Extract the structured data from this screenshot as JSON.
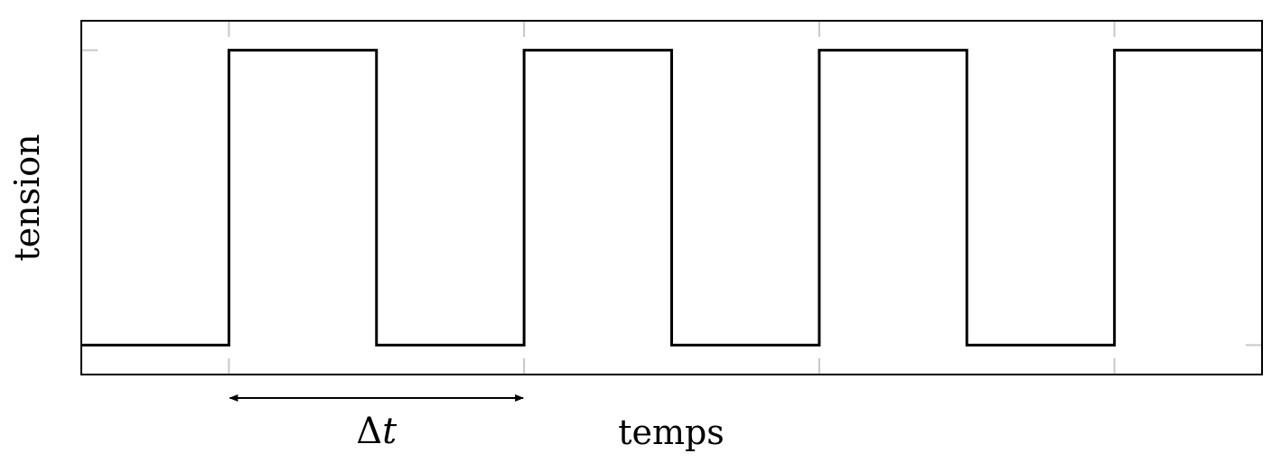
{
  "chart_data": {
    "type": "line",
    "title": "",
    "xlabel": "temps",
    "ylabel": "tension",
    "grid": false,
    "xlim": [
      0,
      8
    ],
    "ylim": [
      -0.1,
      1.1
    ],
    "x_ticks": [
      1,
      3,
      5,
      7
    ],
    "y_ticks": [
      0,
      1
    ],
    "series": [
      {
        "name": "",
        "color": "#000000",
        "x": [
          0,
          1,
          1,
          2,
          2,
          3,
          3,
          4,
          4,
          5,
          5,
          6,
          6,
          7,
          7,
          8
        ],
        "y": [
          0,
          0,
          1,
          1,
          0,
          0,
          1,
          1,
          0,
          0,
          1,
          1,
          0,
          0,
          1,
          1
        ]
      }
    ],
    "annotations": [
      {
        "type": "double-arrow",
        "x_from": 1,
        "x_to": 3,
        "label_symbol": "Δ",
        "label_var": "t"
      }
    ]
  }
}
